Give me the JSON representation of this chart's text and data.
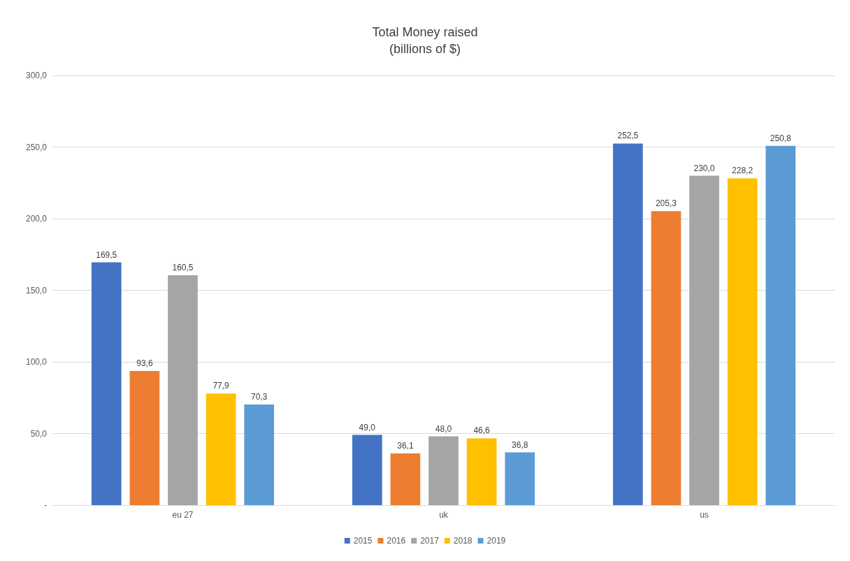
{
  "chart_data": {
    "type": "bar",
    "title": "Total Money raised",
    "subtitle": "(billions of $)",
    "categories": [
      "eu 27",
      "uk",
      "us"
    ],
    "series": [
      {
        "name": "2015",
        "color": "#4472c4",
        "values": [
          169.5,
          49.0,
          252.5
        ],
        "value_labels": [
          "169,5",
          "49,0",
          "252,5"
        ]
      },
      {
        "name": "2016",
        "color": "#ed7d31",
        "values": [
          93.6,
          36.1,
          205.3
        ],
        "value_labels": [
          "93,6",
          "36,1",
          "205,3"
        ]
      },
      {
        "name": "2017",
        "color": "#a5a5a5",
        "values": [
          160.5,
          48.0,
          230.0
        ],
        "value_labels": [
          "160,5",
          "48,0",
          "230,0"
        ]
      },
      {
        "name": "2018",
        "color": "#ffc000",
        "values": [
          77.9,
          46.6,
          228.2
        ],
        "value_labels": [
          "77,9",
          "46,6",
          "228,2"
        ]
      },
      {
        "name": "2019",
        "color": "#5b9bd5",
        "values": [
          70.3,
          36.8,
          250.8
        ],
        "value_labels": [
          "70,3",
          "36,8",
          "250,8"
        ]
      }
    ],
    "ylim": [
      0,
      300
    ],
    "yticks": [
      {
        "value": 0,
        "label": "-"
      },
      {
        "value": 50,
        "label": "50,0"
      },
      {
        "value": 100,
        "label": "100,0"
      },
      {
        "value": 150,
        "label": "150,0"
      },
      {
        "value": 200,
        "label": "200,0"
      },
      {
        "value": 250,
        "label": "250,0"
      },
      {
        "value": 300,
        "label": "300,0"
      }
    ],
    "grid": "y",
    "legend": "bottom"
  }
}
